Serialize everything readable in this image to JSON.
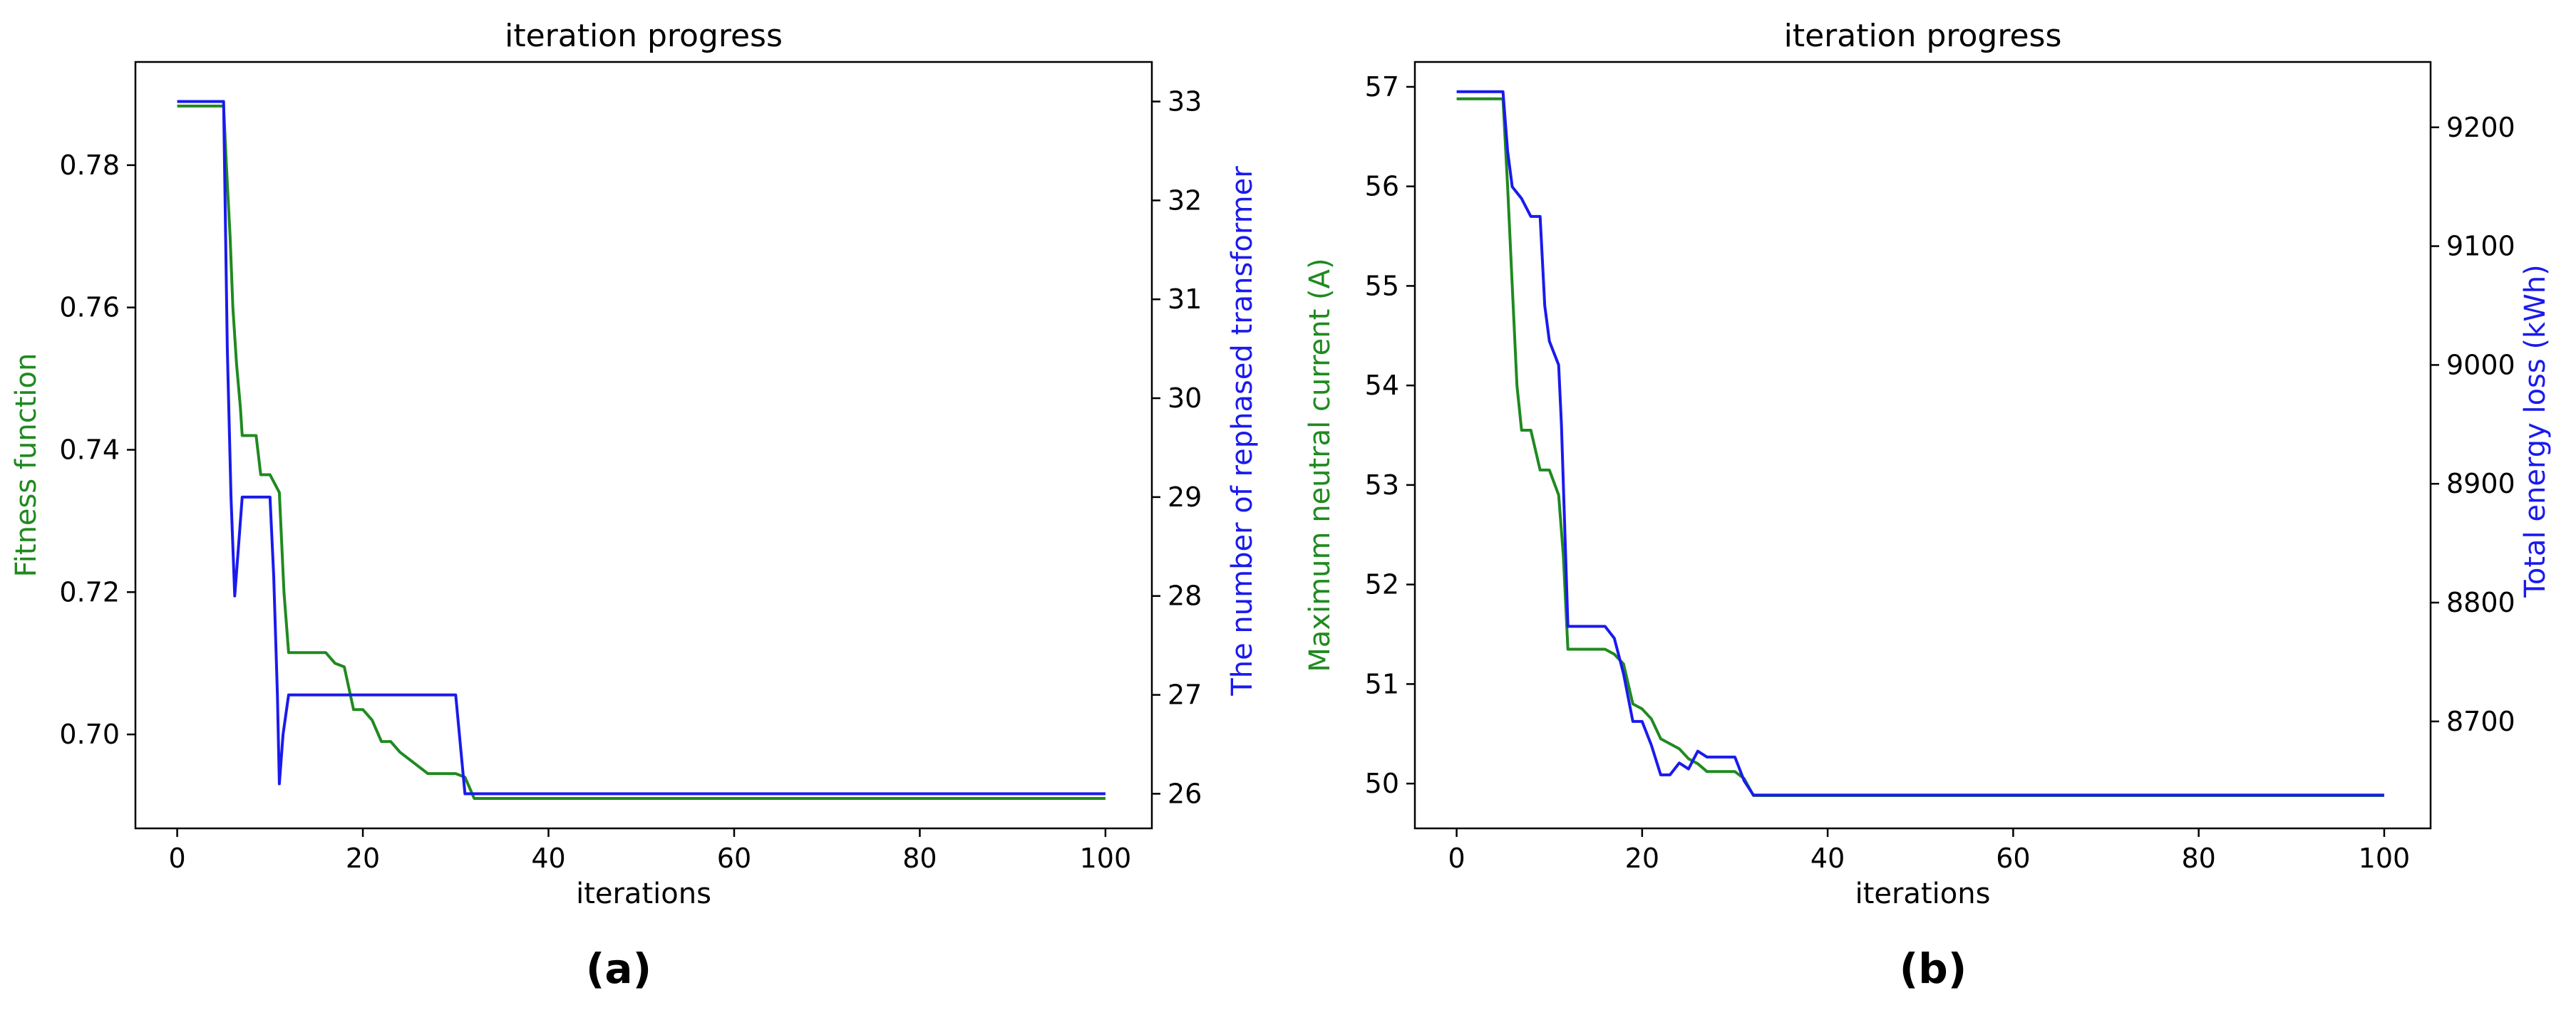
{
  "chart_data": [
    {
      "type": "line",
      "panel_label": "(a)",
      "title": "iteration progress",
      "xlabel": "iterations",
      "ylabel_left": "Fitness function",
      "ylabel_right": "The number of rephased transformer",
      "xlim": [
        -4.5,
        105
      ],
      "ylim_left": [
        0.6868,
        0.7945
      ],
      "ylim_right": [
        25.65,
        33.4
      ],
      "xticks": [
        0,
        20,
        40,
        60,
        80,
        100
      ],
      "yticks_left": [
        0.7,
        0.72,
        0.74,
        0.76,
        0.78
      ],
      "yticks_left_labels": [
        "0.70",
        "0.72",
        "0.74",
        "0.76",
        "0.78"
      ],
      "yticks_right": [
        26,
        27,
        28,
        29,
        30,
        31,
        32,
        33
      ],
      "yticks_right_labels": [
        "26",
        "27",
        "28",
        "29",
        "30",
        "31",
        "32",
        "33"
      ],
      "grid": false,
      "series": [
        {
          "axis": "left",
          "color": "#1f8a1f",
          "points": [
            [
              0,
              0.7883
            ],
            [
              5,
              0.7883
            ],
            [
              5.3,
              0.78
            ],
            [
              5.7,
              0.77
            ],
            [
              6,
              0.76
            ],
            [
              6.4,
              0.752
            ],
            [
              6.8,
              0.746
            ],
            [
              7,
              0.742
            ],
            [
              8.5,
              0.742
            ],
            [
              9,
              0.7365
            ],
            [
              10,
              0.7365
            ],
            [
              11,
              0.734
            ],
            [
              11.5,
              0.72
            ],
            [
              12,
              0.7115
            ],
            [
              16,
              0.7115
            ],
            [
              17,
              0.71
            ],
            [
              18,
              0.7095
            ],
            [
              19,
              0.7035
            ],
            [
              20,
              0.7035
            ],
            [
              21,
              0.702
            ],
            [
              22,
              0.699
            ],
            [
              23,
              0.699
            ],
            [
              24,
              0.6975
            ],
            [
              25,
              0.6965
            ],
            [
              26,
              0.6955
            ],
            [
              27,
              0.6945
            ],
            [
              30,
              0.6945
            ],
            [
              31,
              0.694
            ],
            [
              32,
              0.691
            ],
            [
              100,
              0.691
            ]
          ]
        },
        {
          "axis": "right",
          "color": "#1a1aee",
          "points": [
            [
              0,
              33
            ],
            [
              5,
              33
            ],
            [
              5.4,
              30.5
            ],
            [
              5.8,
              29
            ],
            [
              6.2,
              28
            ],
            [
              6.6,
              28.5
            ],
            [
              7,
              29
            ],
            [
              10,
              29
            ],
            [
              10.4,
              28.2
            ],
            [
              10.8,
              27
            ],
            [
              11,
              26.1
            ],
            [
              11.4,
              26.6
            ],
            [
              12,
              27
            ],
            [
              30,
              27
            ],
            [
              30.5,
              26.5
            ],
            [
              31,
              26
            ],
            [
              100,
              26
            ]
          ]
        }
      ]
    },
    {
      "type": "line",
      "panel_label": "(b)",
      "title": "iteration progress",
      "xlabel": "iterations",
      "ylabel_left": "Maximum neutral current (A)",
      "ylabel_right": "Total energy loss (kWh)",
      "xlim": [
        -4.5,
        105
      ],
      "ylim_left": [
        49.55,
        57.25
      ],
      "ylim_right": [
        8610,
        9255
      ],
      "xticks": [
        0,
        20,
        40,
        60,
        80,
        100
      ],
      "yticks_left": [
        50,
        51,
        52,
        53,
        54,
        55,
        56,
        57
      ],
      "yticks_left_labels": [
        "50",
        "51",
        "52",
        "53",
        "54",
        "55",
        "56",
        "57"
      ],
      "yticks_right": [
        8700,
        8800,
        8900,
        9000,
        9100,
        9200
      ],
      "yticks_right_labels": [
        "8700",
        "8800",
        "8900",
        "9000",
        "9100",
        "9200"
      ],
      "grid": false,
      "series": [
        {
          "axis": "left",
          "color": "#1f8a1f",
          "points": [
            [
              0,
              56.88
            ],
            [
              5,
              56.88
            ],
            [
              5.5,
              56.0
            ],
            [
              6,
              55.0
            ],
            [
              6.5,
              54.0
            ],
            [
              7,
              53.55
            ],
            [
              8,
              53.55
            ],
            [
              9,
              53.15
            ],
            [
              10,
              53.15
            ],
            [
              11,
              52.9
            ],
            [
              11.5,
              52.3
            ],
            [
              12,
              51.35
            ],
            [
              16,
              51.35
            ],
            [
              17,
              51.3
            ],
            [
              18,
              51.2
            ],
            [
              19,
              50.8
            ],
            [
              20,
              50.75
            ],
            [
              21,
              50.65
            ],
            [
              22,
              50.45
            ],
            [
              23,
              50.4
            ],
            [
              24,
              50.35
            ],
            [
              25,
              50.25
            ],
            [
              26,
              50.2
            ],
            [
              27,
              50.12
            ],
            [
              30,
              50.12
            ],
            [
              31,
              50.05
            ],
            [
              32,
              49.88
            ],
            [
              100,
              49.88
            ]
          ]
        },
        {
          "axis": "right",
          "color": "#1a1aee",
          "points": [
            [
              0,
              9230
            ],
            [
              5,
              9230
            ],
            [
              5.5,
              9180
            ],
            [
              6,
              9150
            ],
            [
              7,
              9140
            ],
            [
              8,
              9125
            ],
            [
              9,
              9125
            ],
            [
              9.5,
              9050
            ],
            [
              10,
              9020
            ],
            [
              11,
              9000
            ],
            [
              11.3,
              8950
            ],
            [
              12,
              8780
            ],
            [
              16,
              8780
            ],
            [
              17,
              8770
            ],
            [
              18,
              8740
            ],
            [
              19,
              8700
            ],
            [
              20,
              8700
            ],
            [
              21,
              8680
            ],
            [
              22,
              8655
            ],
            [
              23,
              8655
            ],
            [
              24,
              8665
            ],
            [
              25,
              8660
            ],
            [
              26,
              8675
            ],
            [
              27,
              8670
            ],
            [
              30,
              8670
            ],
            [
              31,
              8650
            ],
            [
              32,
              8638
            ],
            [
              100,
              8638
            ]
          ]
        }
      ]
    }
  ]
}
